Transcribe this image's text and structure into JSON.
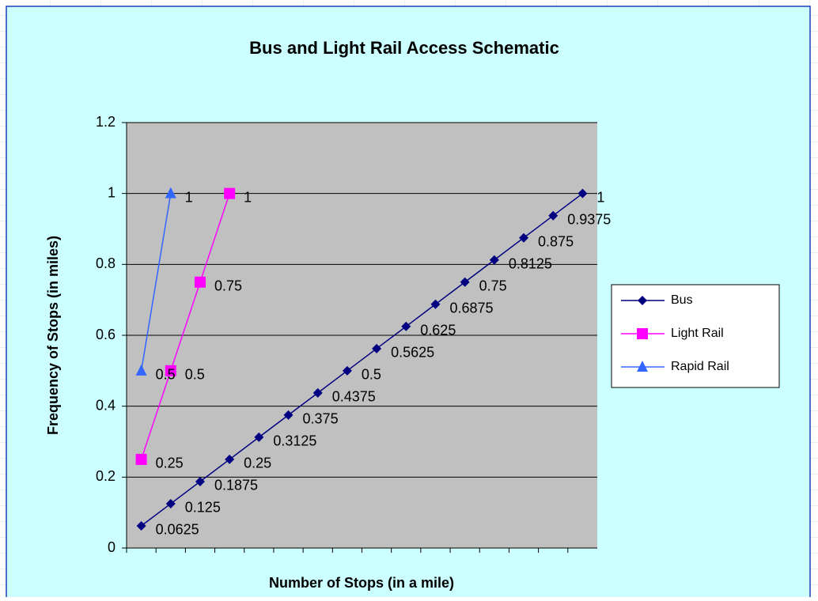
{
  "chart_data": {
    "type": "line",
    "title": "Bus and Light Rail Access Schematic",
    "x_label": "Number of Stops (in a mile)",
    "y_label": "Frequency of Stops (in miles)",
    "categories": [
      null,
      null,
      null,
      null,
      null,
      null,
      null,
      null,
      null,
      null,
      null,
      null,
      null,
      null,
      null,
      null
    ],
    "series": [
      {
        "name": "Bus",
        "color": "#000080",
        "marker": "diamond",
        "values": [
          0.0625,
          0.125,
          0.1875,
          0.25,
          0.3125,
          0.375,
          0.4375,
          0.5,
          0.5625,
          0.625,
          0.6875,
          0.75,
          0.8125,
          0.875,
          0.9375,
          1
        ]
      },
      {
        "name": "Light Rail",
        "color": "#ff00ff",
        "marker": "square",
        "values": [
          0.25,
          0.5,
          0.75,
          1,
          null,
          null,
          null,
          null,
          null,
          null,
          null,
          null,
          null,
          null,
          null,
          null
        ]
      },
      {
        "name": "Rapid Rail",
        "color": "#3366ff",
        "marker": "triangle",
        "values": [
          0.5,
          1,
          null,
          null,
          null,
          null,
          null,
          null,
          null,
          null,
          null,
          null,
          null,
          null,
          null,
          null
        ]
      }
    ],
    "ylim": [
      0,
      1.2
    ],
    "yticks": [
      0,
      0.2,
      0.4,
      0.6,
      0.8,
      1,
      1.2
    ],
    "grid": true,
    "legend": "right"
  }
}
